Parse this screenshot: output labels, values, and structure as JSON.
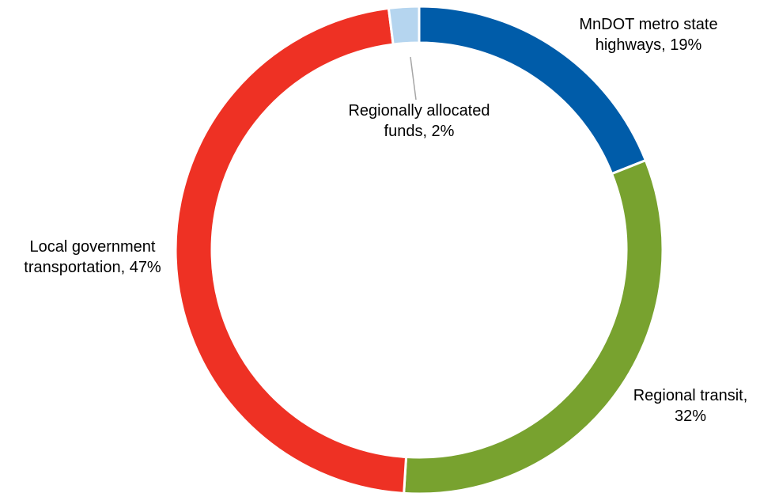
{
  "chart_data": {
    "type": "donut",
    "values": [
      19,
      32,
      47,
      2
    ],
    "value_labels": [
      [
        "MnDOT metro state",
        "highways, 19%"
      ],
      [
        "Regional transit,",
        "32%"
      ],
      [
        "Local government",
        "transportation, 47%"
      ],
      [
        "Regionally allocated",
        "funds, 2%"
      ]
    ],
    "colors": [
      "#005ca9",
      "#78a22f",
      "#ee3124",
      "#b5d5ef"
    ]
  }
}
